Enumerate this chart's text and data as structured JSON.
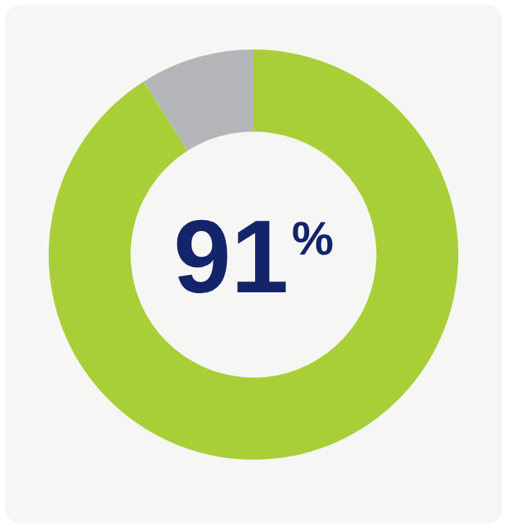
{
  "chart_data": {
    "type": "donut",
    "categories": [
      null,
      null
    ],
    "values": [
      91,
      9
    ],
    "colors": [
      "#a8cf38",
      "#b4b5b8"
    ],
    "legend": false,
    "annotations": [
      "91%"
    ]
  }
}
